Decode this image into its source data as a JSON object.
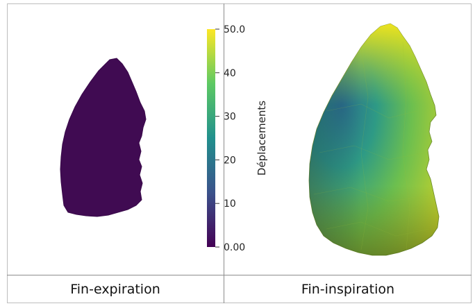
{
  "panels": {
    "left_caption": "Fin-expiration",
    "right_caption": "Fin-inspiration"
  },
  "colorbar": {
    "title": "Déplacements",
    "min": 0,
    "max": 50,
    "ticks": [
      {
        "value": 0,
        "label": "0.00"
      },
      {
        "value": 10,
        "label": "10"
      },
      {
        "value": 20,
        "label": "20"
      },
      {
        "value": 30,
        "label": "30"
      },
      {
        "value": 40,
        "label": "40"
      },
      {
        "value": 50,
        "label": "50.0"
      }
    ],
    "colormap": [
      "#440154",
      "#3b528b",
      "#21908d",
      "#5dc963",
      "#fde725"
    ]
  },
  "colors": {
    "expiration_surface": "#3f0a4f",
    "inspiration_dark": "#2d6f8a",
    "inspiration_mid": "#3aa97d",
    "inspiration_light": "#c9d52c",
    "inspiration_top": "#f2e31f"
  }
}
